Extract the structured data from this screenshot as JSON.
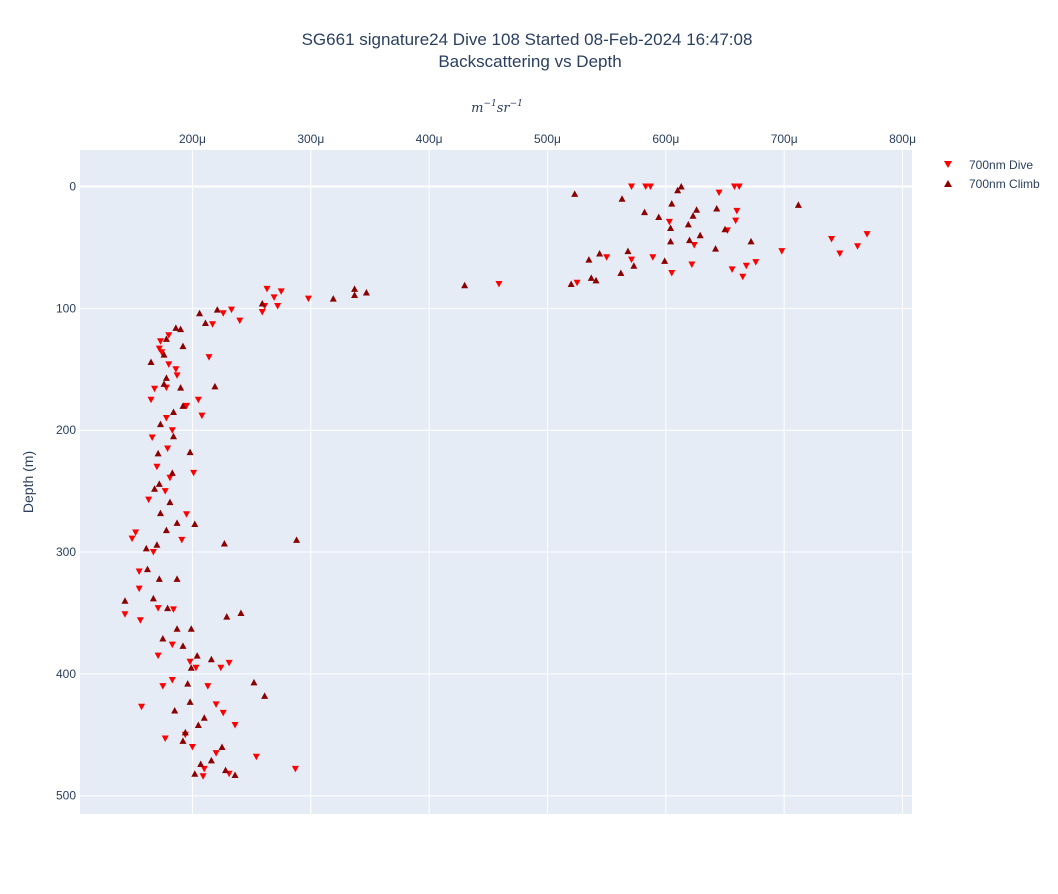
{
  "chart_data": {
    "type": "scatter",
    "title": "SG661 signature24 Dive 108 Started 08-Feb-2024 16:47:08",
    "subtitle": "Backscattering vs Depth",
    "xlabel_tex": "m^{-1} sr^{-1}",
    "xlabel_parts": {
      "base1": "m",
      "exp1": "−1",
      "base2": "sr",
      "exp2": "−1"
    },
    "ylabel": "Depth (m)",
    "x_axis_position": "top",
    "y_axis_reversed": true,
    "xlim": [
      0.000105,
      0.000808
    ],
    "ylim": [
      515,
      -30
    ],
    "xticks": [
      0.0002,
      0.0003,
      0.0004,
      0.0005,
      0.0006,
      0.0007,
      0.0008
    ],
    "xtick_labels": [
      "200μ",
      "300μ",
      "400μ",
      "500μ",
      "600μ",
      "700μ",
      "800μ"
    ],
    "yticks": [
      0,
      100,
      200,
      300,
      400,
      500
    ],
    "ytick_labels": [
      "0",
      "100",
      "200",
      "300",
      "400",
      "500"
    ],
    "grid": true,
    "legend_position": "top-right",
    "series": [
      {
        "name": "700nm Dive",
        "color": "#ff0000",
        "marker": "triangle-down",
        "points": [
          [
            0.000571,
            0
          ],
          [
            0.000583,
            0
          ],
          [
            0.000587,
            0
          ],
          [
            0.000658,
            0
          ],
          [
            0.000662,
            0
          ],
          [
            0.000645,
            5
          ],
          [
            0.00066,
            20
          ],
          [
            0.000603,
            29
          ],
          [
            0.000659,
            28
          ],
          [
            0.000652,
            36
          ],
          [
            0.00077,
            39
          ],
          [
            0.00074,
            43
          ],
          [
            0.000762,
            49
          ],
          [
            0.000624,
            48
          ],
          [
            0.000698,
            53
          ],
          [
            0.000747,
            55
          ],
          [
            0.00055,
            58
          ],
          [
            0.000589,
            58
          ],
          [
            0.000622,
            64
          ],
          [
            0.000571,
            60
          ],
          [
            0.000676,
            62
          ],
          [
            0.000668,
            65
          ],
          [
            0.000656,
            68
          ],
          [
            0.000605,
            71
          ],
          [
            0.000665,
            74
          ],
          [
            0.000525,
            79
          ],
          [
            0.000459,
            80
          ],
          [
            0.000263,
            84
          ],
          [
            0.000275,
            86
          ],
          [
            0.000269,
            91
          ],
          [
            0.000298,
            92
          ],
          [
            0.000261,
            98
          ],
          [
            0.000272,
            98
          ],
          [
            0.000233,
            101
          ],
          [
            0.000259,
            103
          ],
          [
            0.000226,
            104
          ],
          [
            0.00024,
            110
          ],
          [
            0.000217,
            113
          ],
          [
            0.00018,
            122
          ],
          [
            0.000173,
            127
          ],
          [
            0.000172,
            133
          ],
          [
            0.000174,
            136
          ],
          [
            0.00018,
            146
          ],
          [
            0.000214,
            140
          ],
          [
            0.000186,
            150
          ],
          [
            0.000187,
            155
          ],
          [
            0.000178,
            165
          ],
          [
            0.000168,
            166
          ],
          [
            0.000165,
            175
          ],
          [
            0.000205,
            175
          ],
          [
            0.000195,
            180
          ],
          [
            0.000208,
            188
          ],
          [
            0.000178,
            190
          ],
          [
            0.000183,
            200
          ],
          [
            0.000166,
            206
          ],
          [
            0.000179,
            215
          ],
          [
            0.00017,
            230
          ],
          [
            0.000201,
            235
          ],
          [
            0.000181,
            239
          ],
          [
            0.000177,
            250
          ],
          [
            0.000163,
            257
          ],
          [
            0.000152,
            284
          ],
          [
            0.000149,
            289
          ],
          [
            0.000195,
            269
          ],
          [
            0.000191,
            290
          ],
          [
            0.000167,
            300
          ],
          [
            0.000155,
            316
          ],
          [
            0.000155,
            330
          ],
          [
            0.000171,
            346
          ],
          [
            0.000143,
            351
          ],
          [
            0.000156,
            356
          ],
          [
            0.000184,
            347
          ],
          [
            0.000183,
            376
          ],
          [
            0.000171,
            385
          ],
          [
            0.000198,
            390
          ],
          [
            0.000203,
            395
          ],
          [
            0.000224,
            395
          ],
          [
            0.000231,
            391
          ],
          [
            0.000183,
            405
          ],
          [
            0.000175,
            410
          ],
          [
            0.000213,
            410
          ],
          [
            0.00022,
            425
          ],
          [
            0.000157,
            427
          ],
          [
            0.000226,
            432
          ],
          [
            0.000236,
            442
          ],
          [
            0.000194,
            450
          ],
          [
            0.000177,
            453
          ],
          [
            0.0002,
            460
          ],
          [
            0.000254,
            468
          ],
          [
            0.00022,
            465
          ],
          [
            0.00021,
            478
          ],
          [
            0.000287,
            478
          ],
          [
            0.000231,
            482
          ],
          [
            0.000209,
            484
          ]
        ]
      },
      {
        "name": "700nm Climb",
        "color": "#8b0000",
        "marker": "triangle-up",
        "points": [
          [
            0.000613,
            0
          ],
          [
            0.00061,
            3
          ],
          [
            0.000523,
            6
          ],
          [
            0.000563,
            10
          ],
          [
            0.000605,
            14
          ],
          [
            0.000712,
            15
          ],
          [
            0.000643,
            18
          ],
          [
            0.000626,
            19
          ],
          [
            0.000582,
            21
          ],
          [
            0.000594,
            25
          ],
          [
            0.000623,
            24
          ],
          [
            0.000619,
            31
          ],
          [
            0.000604,
            34
          ],
          [
            0.00065,
            35
          ],
          [
            0.000629,
            40
          ],
          [
            0.00062,
            44
          ],
          [
            0.000604,
            45
          ],
          [
            0.000672,
            45
          ],
          [
            0.000568,
            53
          ],
          [
            0.000544,
            55
          ],
          [
            0.000535,
            60
          ],
          [
            0.000642,
            51
          ],
          [
            0.000599,
            61
          ],
          [
            0.000573,
            65
          ],
          [
            0.000562,
            71
          ],
          [
            0.000537,
            75
          ],
          [
            0.000541,
            77
          ],
          [
            0.00052,
            80
          ],
          [
            0.00043,
            81
          ],
          [
            0.000337,
            84
          ],
          [
            0.000337,
            89
          ],
          [
            0.000347,
            87
          ],
          [
            0.000319,
            92
          ],
          [
            0.000259,
            96
          ],
          [
            0.000221,
            101
          ],
          [
            0.000206,
            104
          ],
          [
            0.000211,
            112
          ],
          [
            0.00019,
            117
          ],
          [
            0.000186,
            116
          ],
          [
            0.000178,
            125
          ],
          [
            0.000192,
            131
          ],
          [
            0.000176,
            138
          ],
          [
            0.000165,
            144
          ],
          [
            0.000178,
            157
          ],
          [
            0.000176,
            162
          ],
          [
            0.00019,
            165
          ],
          [
            0.000219,
            164
          ],
          [
            0.000192,
            180
          ],
          [
            0.000184,
            185
          ],
          [
            0.000173,
            195
          ],
          [
            0.000184,
            205
          ],
          [
            0.000171,
            219
          ],
          [
            0.000198,
            218
          ],
          [
            0.000183,
            235
          ],
          [
            0.000172,
            244
          ],
          [
            0.000168,
            248
          ],
          [
            0.000181,
            259
          ],
          [
            0.000173,
            268
          ],
          [
            0.000187,
            276
          ],
          [
            0.000202,
            277
          ],
          [
            0.000178,
            282
          ],
          [
            0.00017,
            294
          ],
          [
            0.000227,
            293
          ],
          [
            0.000288,
            290
          ],
          [
            0.000161,
            297
          ],
          [
            0.000162,
            314
          ],
          [
            0.000172,
            322
          ],
          [
            0.000187,
            322
          ],
          [
            0.000167,
            338
          ],
          [
            0.000143,
            340
          ],
          [
            0.000179,
            346
          ],
          [
            0.000229,
            353
          ],
          [
            0.000241,
            350
          ],
          [
            0.000199,
            363
          ],
          [
            0.000187,
            363
          ],
          [
            0.000175,
            371
          ],
          [
            0.000192,
            377
          ],
          [
            0.000204,
            385
          ],
          [
            0.000216,
            388
          ],
          [
            0.000199,
            395
          ],
          [
            0.000252,
            407
          ],
          [
            0.000196,
            408
          ],
          [
            0.000261,
            418
          ],
          [
            0.000198,
            423
          ],
          [
            0.000185,
            430
          ],
          [
            0.00021,
            436
          ],
          [
            0.000205,
            442
          ],
          [
            0.000194,
            448
          ],
          [
            0.000192,
            455
          ],
          [
            0.000225,
            460
          ],
          [
            0.000216,
            471
          ],
          [
            0.000207,
            474
          ],
          [
            0.000236,
            483
          ],
          [
            0.000202,
            482
          ],
          [
            0.000228,
            479
          ]
        ]
      }
    ]
  }
}
